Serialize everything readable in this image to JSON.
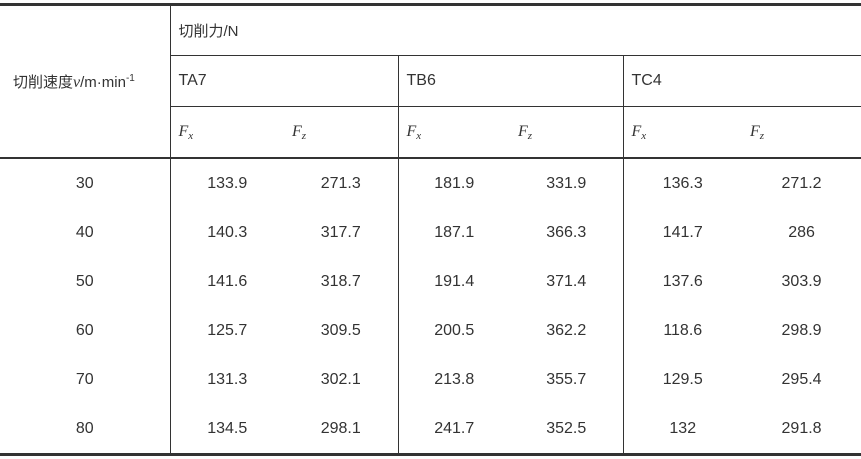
{
  "table": {
    "speed_header": {
      "prefix": "切削速度",
      "symbol": "v",
      "unit": "/m·min",
      "sup": "-1"
    },
    "force_header": "切削力/N",
    "materials": [
      "TA7",
      "TB6",
      "TC4"
    ],
    "fx": {
      "base": "F",
      "sub": "x"
    },
    "fz": {
      "base": "F",
      "sub": "z"
    },
    "rows": [
      {
        "speed": "30",
        "values": [
          "133.9",
          "271.3",
          "181.9",
          "331.9",
          "136.3",
          "271.2"
        ]
      },
      {
        "speed": "40",
        "values": [
          "140.3",
          "317.7",
          "187.1",
          "366.3",
          "141.7",
          "286"
        ]
      },
      {
        "speed": "50",
        "values": [
          "141.6",
          "318.7",
          "191.4",
          "371.4",
          "137.6",
          "303.9"
        ]
      },
      {
        "speed": "60",
        "values": [
          "125.7",
          "309.5",
          "200.5",
          "362.2",
          "118.6",
          "298.9"
        ]
      },
      {
        "speed": "70",
        "values": [
          "131.3",
          "302.1",
          "213.8",
          "355.7",
          "129.5",
          "295.4"
        ]
      },
      {
        "speed": "80",
        "values": [
          "134.5",
          "298.1",
          "241.7",
          "352.5",
          "132",
          "291.8"
        ]
      }
    ],
    "colors": {
      "border": "#333333",
      "text": "#333333",
      "background": "#ffffff"
    }
  },
  "chart_data": {
    "type": "table",
    "title": "切削力/N",
    "row_header": "切削速度v/m·min-1",
    "speeds": [
      30,
      40,
      50,
      60,
      70,
      80
    ],
    "series": [
      {
        "name": "TA7 Fx",
        "values": [
          133.9,
          140.3,
          141.6,
          125.7,
          131.3,
          134.5
        ]
      },
      {
        "name": "TA7 Fz",
        "values": [
          271.3,
          317.7,
          318.7,
          309.5,
          302.1,
          298.1
        ]
      },
      {
        "name": "TB6 Fx",
        "values": [
          181.9,
          187.1,
          191.4,
          200.5,
          213.8,
          241.7
        ]
      },
      {
        "name": "TB6 Fz",
        "values": [
          331.9,
          366.3,
          371.4,
          362.2,
          355.7,
          352.5
        ]
      },
      {
        "name": "TC4 Fx",
        "values": [
          136.3,
          141.7,
          137.6,
          118.6,
          129.5,
          132
        ]
      },
      {
        "name": "TC4 Fz",
        "values": [
          271.2,
          286,
          303.9,
          298.9,
          295.4,
          291.8
        ]
      }
    ]
  }
}
